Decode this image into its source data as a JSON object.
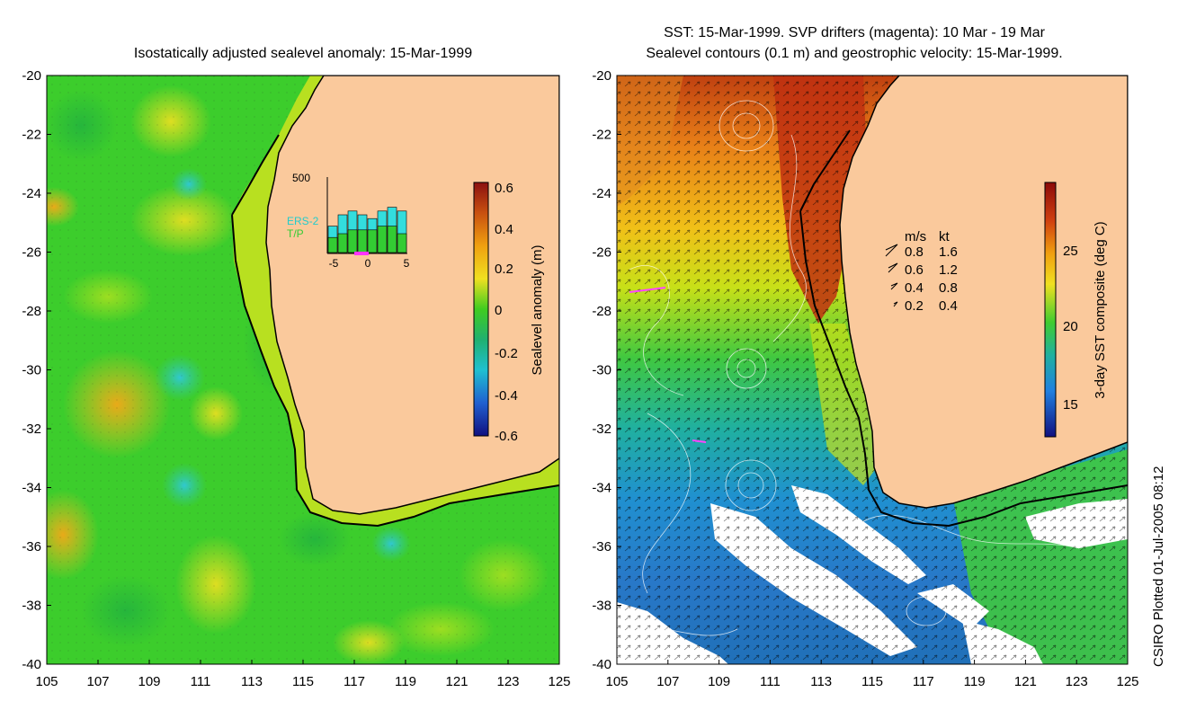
{
  "left_panel": {
    "title": "Isostatically adjusted sealevel anomaly: 15-Mar-1999",
    "colorbar_label": "Sealevel anomaly (m)",
    "colorbar_ticks": [
      "0.6",
      "0.4",
      "0.2",
      "0",
      "-0.2",
      "-0.4",
      "-0.6"
    ],
    "inset": {
      "y_tick": "500",
      "x_ticks": [
        "-5",
        "0",
        "5"
      ],
      "legend": [
        {
          "label": "ERS-2",
          "color": "#33dddd"
        },
        {
          "label": "T/P",
          "color": "#33cc33"
        }
      ],
      "bars_ers2": [
        0.35,
        0.5,
        0.55,
        0.5,
        0.45,
        0.55,
        0.6,
        0.55
      ],
      "bars_tp": [
        0.2,
        0.25,
        0.3,
        0.3,
        0.3,
        0.35,
        0.35,
        0.25
      ]
    }
  },
  "right_panel": {
    "title_line1": "SST: 15-Mar-1999. SVP drifters (magenta): 10 Mar - 19 Mar",
    "title_line2": "Sealevel contours (0.1 m) and geostrophic velocity: 15-Mar-1999.",
    "colorbar_label": "3-day SST composite (deg C)",
    "colorbar_ticks": [
      "25",
      "20",
      "15"
    ],
    "velocity_legend": {
      "headers": [
        "m/s",
        "kt"
      ],
      "rows": [
        {
          "ms": "0.8",
          "kt": "1.6"
        },
        {
          "ms": "0.6",
          "kt": "1.2"
        },
        {
          "ms": "0.4",
          "kt": "0.8"
        },
        {
          "ms": "0.2",
          "kt": "0.4"
        }
      ]
    }
  },
  "axes": {
    "y_ticks": [
      "-20",
      "-22",
      "-24",
      "-26",
      "-28",
      "-30",
      "-32",
      "-34",
      "-36",
      "-38",
      "-40"
    ],
    "x_ticks": [
      "105",
      "107",
      "109",
      "111",
      "113",
      "115",
      "117",
      "119",
      "121",
      "123",
      "125"
    ],
    "lon_range": [
      105,
      125
    ],
    "lat_range": [
      -40,
      -20
    ]
  },
  "footer": "CSIRO Plotted 01-Jul-2005 08:12",
  "colors": {
    "land": "#fac99c",
    "ocean_green": "#2ed12e",
    "coast": "#000000"
  }
}
